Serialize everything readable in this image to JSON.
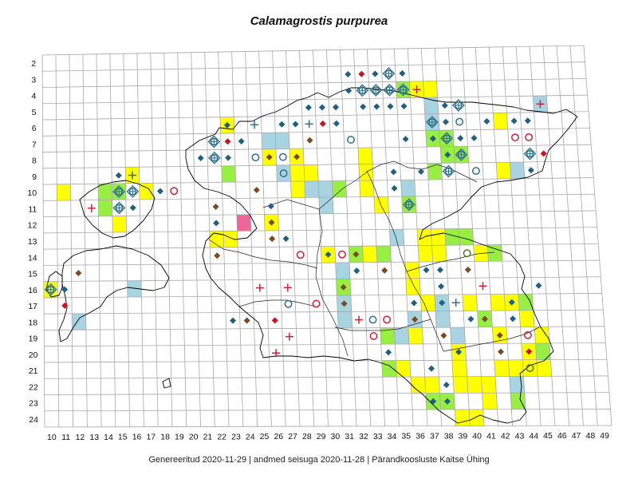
{
  "title": "Calamagrostis purpurea",
  "footer": "Genereeritud 2020-11-29  |  andmed seisuga 2020-11-28  |  Pärandkoosluste Kaitse Ühing",
  "colors": {
    "yellow": "#ffff00",
    "green": "#99ee44",
    "blue": "#a8d3e0",
    "pink": "#ee6699",
    "diamond_blue": "#1f5f7f",
    "diamond_red": "#cc1122",
    "diamond_brown": "#7a4a22",
    "ring_blue": "#2f6f88",
    "ring_red": "#cc2233",
    "cross_red": "#cc2233",
    "cross_blue": "#2f6f88"
  },
  "x_labels": [
    "10",
    "11",
    "12",
    "13",
    "14",
    "15",
    "16",
    "17",
    "18",
    "19",
    "20",
    "21",
    "22",
    "23",
    "24",
    "25",
    "26",
    "27",
    "28",
    "29",
    "30",
    "31",
    "32",
    "33",
    "34",
    "35",
    "36",
    "37",
    "38",
    "39",
    "40",
    "41",
    "42",
    "43",
    "44",
    "45",
    "46",
    "47",
    "48",
    "49"
  ],
  "y_labels": [
    "2",
    "3",
    "4",
    "5",
    "6",
    "7",
    "8",
    "9",
    "10",
    "11",
    "12",
    "13",
    "14",
    "15",
    "16",
    "17",
    "18",
    "19",
    "20",
    "21",
    "22",
    "23",
    "24"
  ],
  "cells": [
    {
      "c": 23,
      "r": 6,
      "f": "yellow"
    },
    {
      "c": 26,
      "r": 7,
      "f": "blue"
    },
    {
      "c": 27,
      "r": 7,
      "f": "blue"
    },
    {
      "c": 26,
      "r": 8,
      "f": "yellow"
    },
    {
      "c": 28,
      "r": 8,
      "f": "yellow"
    },
    {
      "c": 28,
      "r": 9,
      "f": "yellow"
    },
    {
      "c": 29,
      "r": 9,
      "f": "yellow"
    },
    {
      "c": 27,
      "r": 9,
      "f": "blue"
    },
    {
      "c": 23,
      "r": 9,
      "f": "green"
    },
    {
      "c": 28,
      "r": 10,
      "f": "yellow"
    },
    {
      "c": 29,
      "r": 10,
      "f": "blue"
    },
    {
      "c": 30,
      "r": 10,
      "f": "blue"
    },
    {
      "c": 31,
      "r": 10,
      "f": "green"
    },
    {
      "c": 30,
      "r": 11,
      "f": "blue"
    },
    {
      "c": 26,
      "r": 12,
      "f": "yellow"
    },
    {
      "c": 24,
      "r": 12,
      "f": "pink"
    },
    {
      "c": 22,
      "r": 13,
      "f": "yellow"
    },
    {
      "c": 23,
      "r": 13,
      "f": "yellow"
    },
    {
      "c": 11,
      "r": 10,
      "f": "yellow"
    },
    {
      "c": 14,
      "r": 10,
      "f": "green"
    },
    {
      "c": 15,
      "r": 10,
      "f": "green"
    },
    {
      "c": 14,
      "r": 11,
      "f": "green"
    },
    {
      "c": 15,
      "r": 12,
      "f": "yellow"
    },
    {
      "c": 16,
      "r": 9,
      "f": "yellow"
    },
    {
      "c": 17,
      "r": 10,
      "f": "yellow"
    },
    {
      "c": 10,
      "r": 16,
      "f": "yellow"
    },
    {
      "c": 16,
      "r": 16,
      "f": "blue"
    },
    {
      "c": 12,
      "r": 18,
      "f": "blue"
    },
    {
      "c": 33,
      "r": 8,
      "f": "yellow"
    },
    {
      "c": 33,
      "r": 9,
      "f": "yellow"
    },
    {
      "c": 33,
      "r": 10,
      "f": "yellow"
    },
    {
      "c": 34,
      "r": 11,
      "f": "yellow"
    },
    {
      "c": 36,
      "r": 10,
      "f": "blue"
    },
    {
      "c": 36,
      "r": 11,
      "f": "green"
    },
    {
      "c": 36,
      "r": 4,
      "f": "green"
    },
    {
      "c": 37,
      "r": 4,
      "f": "yellow"
    },
    {
      "c": 38,
      "r": 4,
      "f": "yellow"
    },
    {
      "c": 38,
      "r": 5,
      "f": "blue"
    },
    {
      "c": 38,
      "r": 6,
      "f": "blue"
    },
    {
      "c": 39,
      "r": 7,
      "f": "green"
    },
    {
      "c": 38,
      "r": 7,
      "f": "green"
    },
    {
      "c": 39,
      "r": 8,
      "f": "green"
    },
    {
      "c": 38,
      "r": 9,
      "f": "green"
    },
    {
      "c": 40,
      "r": 8,
      "f": "green"
    },
    {
      "c": 43,
      "r": 6,
      "f": "yellow"
    },
    {
      "c": 43,
      "r": 9,
      "f": "yellow"
    },
    {
      "c": 44,
      "r": 9,
      "f": "blue"
    },
    {
      "c": 46,
      "r": 5,
      "f": "blue"
    },
    {
      "c": 35,
      "r": 13,
      "f": "blue"
    },
    {
      "c": 37,
      "r": 13,
      "f": "yellow"
    },
    {
      "c": 38,
      "r": 13,
      "f": "yellow"
    },
    {
      "c": 37,
      "r": 14,
      "f": "yellow"
    },
    {
      "c": 38,
      "r": 14,
      "f": "yellow"
    },
    {
      "c": 39,
      "r": 13,
      "f": "green"
    },
    {
      "c": 40,
      "r": 13,
      "f": "green"
    },
    {
      "c": 41,
      "r": 14,
      "f": "yellow"
    },
    {
      "c": 42,
      "r": 14,
      "f": "green"
    },
    {
      "c": 32,
      "r": 14,
      "f": "green"
    },
    {
      "c": 33,
      "r": 14,
      "f": "yellow"
    },
    {
      "c": 34,
      "r": 14,
      "f": "green"
    },
    {
      "c": 30,
      "r": 14,
      "f": "yellow"
    },
    {
      "c": 31,
      "r": 15,
      "f": "blue"
    },
    {
      "c": 31,
      "r": 16,
      "f": "green"
    },
    {
      "c": 31,
      "r": 17,
      "f": "blue"
    },
    {
      "c": 31,
      "r": 18,
      "f": "blue"
    },
    {
      "c": 36,
      "r": 15,
      "f": "yellow"
    },
    {
      "c": 36,
      "r": 16,
      "f": "yellow"
    },
    {
      "c": 37,
      "r": 17,
      "f": "yellow"
    },
    {
      "c": 38,
      "r": 17,
      "f": "blue"
    },
    {
      "c": 38,
      "r": 18,
      "f": "blue"
    },
    {
      "c": 35,
      "r": 19,
      "f": "blue"
    },
    {
      "c": 36,
      "r": 18,
      "f": "blue"
    },
    {
      "c": 34,
      "r": 19,
      "f": "green"
    },
    {
      "c": 36,
      "r": 19,
      "f": "yellow"
    },
    {
      "c": 39,
      "r": 19,
      "f": "blue"
    },
    {
      "c": 41,
      "r": 18,
      "f": "green"
    },
    {
      "c": 42,
      "r": 17,
      "f": "yellow"
    },
    {
      "c": 43,
      "r": 17,
      "f": "yellow"
    },
    {
      "c": 44,
      "r": 17,
      "f": "green"
    },
    {
      "c": 44,
      "r": 18,
      "f": "yellow"
    },
    {
      "c": 42,
      "r": 19,
      "f": "yellow"
    },
    {
      "c": 45,
      "r": 19,
      "f": "yellow"
    },
    {
      "c": 45,
      "r": 20,
      "f": "green"
    },
    {
      "c": 40,
      "r": 17,
      "f": "yellow"
    },
    {
      "c": 34,
      "r": 21,
      "f": "green"
    },
    {
      "c": 35,
      "r": 21,
      "f": "yellow"
    },
    {
      "c": 36,
      "r": 22,
      "f": "yellow"
    },
    {
      "c": 37,
      "r": 22,
      "f": "yellow"
    },
    {
      "c": 37,
      "r": 23,
      "f": "green"
    },
    {
      "c": 38,
      "r": 23,
      "f": "green"
    },
    {
      "c": 39,
      "r": 22,
      "f": "yellow"
    },
    {
      "c": 39,
      "r": 21,
      "f": "yellow"
    },
    {
      "c": 39,
      "r": 20,
      "f": "yellow"
    },
    {
      "c": 40,
      "r": 22,
      "f": "yellow"
    },
    {
      "c": 41,
      "r": 22,
      "f": "yellow"
    },
    {
      "c": 42,
      "r": 21,
      "f": "yellow"
    },
    {
      "c": 43,
      "r": 22,
      "f": "blue"
    },
    {
      "c": 43,
      "r": 21,
      "f": "yellow"
    },
    {
      "c": 44,
      "r": 21,
      "f": "yellow"
    },
    {
      "c": 45,
      "r": 21,
      "f": "yellow"
    },
    {
      "c": 40,
      "r": 24,
      "f": "yellow"
    },
    {
      "c": 39,
      "r": 24,
      "f": "yellow"
    },
    {
      "c": 43,
      "r": 23,
      "f": "green"
    },
    {
      "c": 41,
      "r": 23,
      "f": "yellow"
    },
    {
      "c": 44,
      "r": 20,
      "f": "yellow"
    }
  ],
  "symbols": [
    {
      "c": 32,
      "r": 3,
      "s": "diamond",
      "k": "diamond_blue"
    },
    {
      "c": 33,
      "r": 3,
      "s": "diamond",
      "k": "diamond_red"
    },
    {
      "c": 34,
      "r": 3,
      "s": "diamond",
      "k": "diamond_blue"
    },
    {
      "c": 35,
      "r": 3,
      "s": "target",
      "k": "ring_blue"
    },
    {
      "c": 36,
      "r": 3,
      "s": "diamond",
      "k": "diamond_blue"
    },
    {
      "c": 33,
      "r": 4,
      "s": "target",
      "k": "ring_blue"
    },
    {
      "c": 34,
      "r": 4,
      "s": "target",
      "k": "ring_blue"
    },
    {
      "c": 35,
      "r": 4,
      "s": "target",
      "k": "ring_blue"
    },
    {
      "c": 36,
      "r": 4,
      "s": "target",
      "k": "ring_blue"
    },
    {
      "c": 37,
      "r": 4,
      "s": "cross",
      "k": "cross_red"
    },
    {
      "c": 32,
      "r": 4,
      "s": "diamond",
      "k": "diamond_blue"
    },
    {
      "c": 29,
      "r": 5,
      "s": "diamond",
      "k": "diamond_blue"
    },
    {
      "c": 30,
      "r": 5,
      "s": "diamond",
      "k": "diamond_blue"
    },
    {
      "c": 31,
      "r": 5,
      "s": "diamond",
      "k": "diamond_blue"
    },
    {
      "c": 33,
      "r": 5,
      "s": "diamond",
      "k": "diamond_blue"
    },
    {
      "c": 34,
      "r": 5,
      "s": "diamond",
      "k": "diamond_blue"
    },
    {
      "c": 35,
      "r": 5,
      "s": "diamond",
      "k": "diamond_blue"
    },
    {
      "c": 36,
      "r": 5,
      "s": "diamond",
      "k": "diamond_blue"
    },
    {
      "c": 39,
      "r": 5,
      "s": "diamond",
      "k": "diamond_blue"
    },
    {
      "c": 40,
      "r": 5,
      "s": "target",
      "k": "ring_blue"
    },
    {
      "c": 46,
      "r": 5,
      "s": "cross",
      "k": "cross_red"
    },
    {
      "c": 28,
      "r": 6,
      "s": "diamond",
      "k": "diamond_blue"
    },
    {
      "c": 27,
      "r": 6,
      "s": "diamond",
      "k": "diamond_blue"
    },
    {
      "c": 29,
      "r": 6,
      "s": "cross",
      "k": "cross_blue"
    },
    {
      "c": 30,
      "r": 6,
      "s": "diamond",
      "k": "diamond_red"
    },
    {
      "c": 31,
      "r": 6,
      "s": "diamond",
      "k": "diamond_blue"
    },
    {
      "c": 23,
      "r": 6,
      "s": "diamond",
      "k": "diamond_blue"
    },
    {
      "c": 25,
      "r": 6,
      "s": "cross",
      "k": "cross_blue"
    },
    {
      "c": 38,
      "r": 6,
      "s": "target",
      "k": "ring_blue"
    },
    {
      "c": 39,
      "r": 6,
      "s": "diamond",
      "k": "diamond_blue"
    },
    {
      "c": 40,
      "r": 6,
      "s": "ring",
      "k": "ring_blue"
    },
    {
      "c": 42,
      "r": 6,
      "s": "diamond",
      "k": "diamond_blue"
    },
    {
      "c": 44,
      "r": 6,
      "s": "diamond",
      "k": "diamond_blue"
    },
    {
      "c": 45,
      "r": 6,
      "s": "diamond",
      "k": "diamond_blue"
    },
    {
      "c": 22,
      "r": 7,
      "s": "target",
      "k": "ring_blue"
    },
    {
      "c": 23,
      "r": 7,
      "s": "diamond",
      "k": "diamond_red"
    },
    {
      "c": 24,
      "r": 7,
      "s": "diamond",
      "k": "diamond_blue"
    },
    {
      "c": 29,
      "r": 7,
      "s": "diamond",
      "k": "diamond_brown"
    },
    {
      "c": 32,
      "r": 7,
      "s": "ring",
      "k": "ring_blue"
    },
    {
      "c": 36,
      "r": 7,
      "s": "diamond",
      "k": "diamond_blue"
    },
    {
      "c": 38,
      "r": 7,
      "s": "diamond",
      "k": "diamond_blue"
    },
    {
      "c": 39,
      "r": 7,
      "s": "target",
      "k": "ring_blue"
    },
    {
      "c": 40,
      "r": 7,
      "s": "diamond",
      "k": "diamond_blue"
    },
    {
      "c": 41,
      "r": 7,
      "s": "diamond",
      "k": "diamond_blue"
    },
    {
      "c": 44,
      "r": 7,
      "s": "ring",
      "k": "ring_red"
    },
    {
      "c": 45,
      "r": 7,
      "s": "ring",
      "k": "ring_red"
    },
    {
      "c": 21,
      "r": 8,
      "s": "diamond",
      "k": "diamond_blue"
    },
    {
      "c": 22,
      "r": 8,
      "s": "target",
      "k": "ring_blue"
    },
    {
      "c": 23,
      "r": 8,
      "s": "diamond",
      "k": "diamond_blue"
    },
    {
      "c": 25,
      "r": 8,
      "s": "ring",
      "k": "ring_blue"
    },
    {
      "c": 26,
      "r": 8,
      "s": "diamond",
      "k": "diamond_brown"
    },
    {
      "c": 27,
      "r": 8,
      "s": "ring",
      "k": "ring_blue"
    },
    {
      "c": 39,
      "r": 8,
      "s": "diamond",
      "k": "diamond_blue"
    },
    {
      "c": 40,
      "r": 8,
      "s": "target",
      "k": "ring_blue"
    },
    {
      "c": 45,
      "r": 8,
      "s": "target",
      "k": "ring_blue"
    },
    {
      "c": 46,
      "r": 8,
      "s": "diamond",
      "k": "diamond_red"
    },
    {
      "c": 15,
      "r": 9,
      "s": "diamond",
      "k": "diamond_blue"
    },
    {
      "c": 16,
      "r": 9,
      "s": "cross",
      "k": "cross_blue"
    },
    {
      "c": 27,
      "r": 9,
      "s": "ring",
      "k": "ring_blue"
    },
    {
      "c": 35,
      "r": 9,
      "s": "diamond",
      "k": "diamond_blue"
    },
    {
      "c": 37,
      "r": 9,
      "s": "diamond",
      "k": "diamond_blue"
    },
    {
      "c": 39,
      "r": 9,
      "s": "target",
      "k": "ring_blue"
    },
    {
      "c": 41,
      "r": 9,
      "s": "ring",
      "k": "ring_blue"
    },
    {
      "c": 45,
      "r": 9,
      "s": "diamond",
      "k": "diamond_blue"
    },
    {
      "c": 15,
      "r": 10,
      "s": "target",
      "k": "ring_blue"
    },
    {
      "c": 16,
      "r": 10,
      "s": "target",
      "k": "ring_blue"
    },
    {
      "c": 18,
      "r": 10,
      "s": "diamond",
      "k": "diamond_blue"
    },
    {
      "c": 19,
      "r": 10,
      "s": "ring",
      "k": "ring_red"
    },
    {
      "c": 25,
      "r": 10,
      "s": "diamond",
      "k": "diamond_brown"
    },
    {
      "c": 35,
      "r": 10,
      "s": "diamond",
      "k": "diamond_blue"
    },
    {
      "c": 13,
      "r": 11,
      "s": "cross",
      "k": "cross_red"
    },
    {
      "c": 15,
      "r": 11,
      "s": "target",
      "k": "ring_blue"
    },
    {
      "c": 16,
      "r": 11,
      "s": "diamond",
      "k": "diamond_blue"
    },
    {
      "c": 22,
      "r": 11,
      "s": "diamond",
      "k": "diamond_brown"
    },
    {
      "c": 26,
      "r": 11,
      "s": "diamond",
      "k": "diamond_blue"
    },
    {
      "c": 36,
      "r": 11,
      "s": "target",
      "k": "ring_blue"
    },
    {
      "c": 22,
      "r": 12,
      "s": "diamond",
      "k": "diamond_blue"
    },
    {
      "c": 26,
      "r": 12,
      "s": "diamond",
      "k": "diamond_brown"
    },
    {
      "c": 26,
      "r": 13,
      "s": "diamond",
      "k": "diamond_brown"
    },
    {
      "c": 27,
      "r": 13,
      "s": "diamond",
      "k": "diamond_blue"
    },
    {
      "c": 22,
      "r": 14,
      "s": "diamond",
      "k": "diamond_brown"
    },
    {
      "c": 28,
      "r": 14,
      "s": "ring",
      "k": "ring_red"
    },
    {
      "c": 30,
      "r": 14,
      "s": "diamond",
      "k": "diamond_blue"
    },
    {
      "c": 31,
      "r": 14,
      "s": "ring",
      "k": "ring_red"
    },
    {
      "c": 32,
      "r": 14,
      "s": "diamond",
      "k": "diamond_brown"
    },
    {
      "c": 40,
      "r": 14,
      "s": "ring",
      "k": "ring_green"
    },
    {
      "c": 12,
      "r": 15,
      "s": "diamond",
      "k": "diamond_brown"
    },
    {
      "c": 32,
      "r": 15,
      "s": "diamond",
      "k": "diamond_blue"
    },
    {
      "c": 34,
      "r": 15,
      "s": "diamond",
      "k": "diamond_brown"
    },
    {
      "c": 37,
      "r": 15,
      "s": "diamond",
      "k": "diamond_blue"
    },
    {
      "c": 38,
      "r": 15,
      "s": "diamond",
      "k": "diamond_blue"
    },
    {
      "c": 40,
      "r": 15,
      "s": "diamond",
      "k": "diamond_brown"
    },
    {
      "c": 10,
      "r": 16,
      "s": "target",
      "k": "ring_blue"
    },
    {
      "c": 11,
      "r": 16,
      "s": "diamond",
      "k": "diamond_blue"
    },
    {
      "c": 25,
      "r": 16,
      "s": "cross",
      "k": "cross_red"
    },
    {
      "c": 27,
      "r": 16,
      "s": "cross",
      "k": "cross_red"
    },
    {
      "c": 31,
      "r": 16,
      "s": "diamond",
      "k": "diamond_brown"
    },
    {
      "c": 38,
      "r": 16,
      "s": "diamond",
      "k": "diamond_blue"
    },
    {
      "c": 41,
      "r": 16,
      "s": "cross",
      "k": "cross_red"
    },
    {
      "c": 45,
      "r": 16,
      "s": "diamond",
      "k": "diamond_blue"
    },
    {
      "c": 11,
      "r": 17,
      "s": "diamond",
      "k": "diamond_red"
    },
    {
      "c": 27,
      "r": 17,
      "s": "ring",
      "k": "ring_blue"
    },
    {
      "c": 29,
      "r": 17,
      "s": "ring",
      "k": "ring_red"
    },
    {
      "c": 31,
      "r": 17,
      "s": "diamond",
      "k": "diamond_brown"
    },
    {
      "c": 36,
      "r": 17,
      "s": "diamond",
      "k": "diamond_blue"
    },
    {
      "c": 39,
      "r": 17,
      "s": "cross",
      "k": "cross_blue"
    },
    {
      "c": 38,
      "r": 17,
      "s": "diamond",
      "k": "diamond_blue"
    },
    {
      "c": 43,
      "r": 17,
      "s": "diamond",
      "k": "diamond_blue"
    },
    {
      "c": 23,
      "r": 18,
      "s": "diamond",
      "k": "diamond_blue"
    },
    {
      "c": 24,
      "r": 18,
      "s": "diamond",
      "k": "diamond_brown"
    },
    {
      "c": 26,
      "r": 18,
      "s": "diamond",
      "k": "diamond_red"
    },
    {
      "c": 32,
      "r": 18,
      "s": "cross",
      "k": "cross_red"
    },
    {
      "c": 33,
      "r": 18,
      "s": "ring",
      "k": "ring_blue"
    },
    {
      "c": 34,
      "r": 18,
      "s": "ring",
      "k": "ring_red"
    },
    {
      "c": 36,
      "r": 18,
      "s": "diamond",
      "k": "diamond_brown"
    },
    {
      "c": 40,
      "r": 18,
      "s": "diamond",
      "k": "diamond_blue"
    },
    {
      "c": 41,
      "r": 18,
      "s": "diamond",
      "k": "diamond_brown"
    },
    {
      "c": 43,
      "r": 18,
      "s": "diamond",
      "k": "diamond_blue"
    },
    {
      "c": 27,
      "r": 19,
      "s": "cross",
      "k": "cross_red"
    },
    {
      "c": 33,
      "r": 19,
      "s": "ring",
      "k": "ring_red"
    },
    {
      "c": 38,
      "r": 19,
      "s": "diamond",
      "k": "diamond_brown"
    },
    {
      "c": 42,
      "r": 19,
      "s": "diamond",
      "k": "diamond_brown"
    },
    {
      "c": 44,
      "r": 19,
      "s": "ring",
      "k": "ring_red"
    },
    {
      "c": 26,
      "r": 20,
      "s": "cross",
      "k": "cross_red"
    },
    {
      "c": 34,
      "r": 20,
      "s": "diamond",
      "k": "diamond_blue"
    },
    {
      "c": 39,
      "r": 20,
      "s": "diamond",
      "k": "diamond_blue"
    },
    {
      "c": 42,
      "r": 20,
      "s": "diamond",
      "k": "diamond_brown"
    },
    {
      "c": 44,
      "r": 20,
      "s": "diamond",
      "k": "diamond_red"
    },
    {
      "c": 37,
      "r": 21,
      "s": "diamond",
      "k": "diamond_blue"
    },
    {
      "c": 44,
      "r": 21,
      "s": "ring",
      "k": "ring_green"
    },
    {
      "c": 38,
      "r": 22,
      "s": "diamond",
      "k": "diamond_blue"
    },
    {
      "c": 37,
      "r": 23,
      "s": "diamond",
      "k": "diamond_blue"
    },
    {
      "c": 38,
      "r": 23,
      "s": "diamond",
      "k": "diamond_blue"
    },
    {
      "c": 28,
      "r": 8,
      "s": "diamond",
      "k": "diamond_brown"
    }
  ]
}
